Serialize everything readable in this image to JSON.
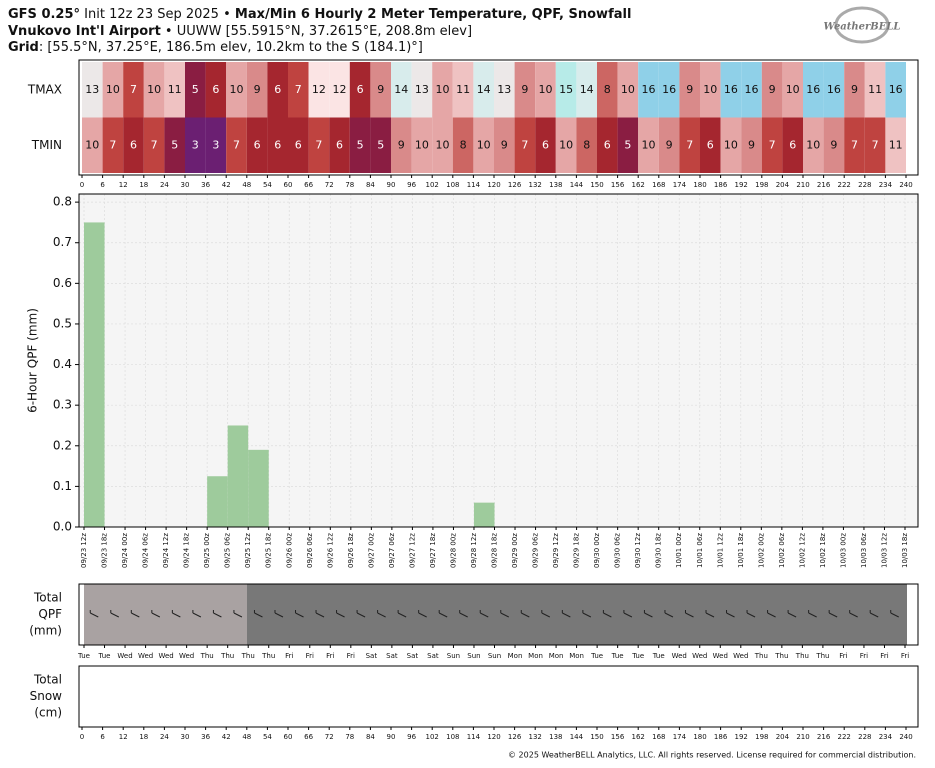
{
  "header": {
    "model": "GFS 0.25°",
    "init": " Init 12z 23 Sep 2025 • ",
    "title": "Max/Min 6 Hourly 2 Meter Temperature, QPF, Snowfall",
    "station": "Vnukovo Int'l Airport",
    "station_info": " • UUWW [55.5915°N, 37.2615°E, 208.8m elev]",
    "grid_label": "Grid",
    "grid_info": ": [55.5°N, 37.25°E, 186.5m elev, 10.2km to the S (184.1)°]",
    "logo": "WeatherBELL",
    "copyright": "© 2025 WeatherBELL Analytics, LLC. All rights reserved. License required for commercial distribution."
  },
  "chart_data": [
    {
      "type": "heatmap",
      "rows": [
        "TMAX",
        "TMIN"
      ],
      "values": [
        [
          13,
          10,
          7,
          10,
          11,
          5,
          6,
          10,
          9,
          6,
          7,
          12,
          12,
          6,
          9,
          14,
          13,
          10,
          11,
          14,
          13,
          9,
          10,
          15,
          14,
          8,
          10,
          16,
          16,
          9,
          10,
          16,
          16,
          9,
          10,
          16,
          16,
          9,
          11,
          16
        ],
        [
          10,
          7,
          6,
          7,
          5,
          3,
          3,
          7,
          6,
          6,
          6,
          7,
          6,
          5,
          5,
          9,
          10,
          10,
          8,
          10,
          9,
          7,
          6,
          10,
          8,
          6,
          5,
          10,
          9,
          7,
          6,
          10,
          9,
          7,
          6,
          10,
          9,
          7,
          7,
          11
        ]
      ],
      "colors": {
        "3": "#6b1f72",
        "5": "#8a1d42",
        "6": "#a5262f",
        "7": "#bf4340",
        "8": "#cc6663",
        "9": "#d98a8a",
        "10": "#e5a6a6",
        "11": "#efc2c2",
        "12": "#fbe4e4",
        "13": "#ece8e8",
        "14": "#d8ecec",
        "15": "#b7ebe8",
        "16": "#8fd0e8"
      },
      "xlim": [
        0,
        240
      ],
      "xticks": [
        0,
        6,
        12,
        18,
        24,
        30,
        36,
        42,
        48,
        54,
        60,
        66,
        72,
        78,
        84,
        90,
        96,
        102,
        108,
        114,
        120,
        126,
        132,
        138,
        144,
        150,
        156,
        162,
        168,
        174,
        180,
        186,
        192,
        198,
        204,
        210,
        216,
        222,
        228,
        234,
        240
      ]
    },
    {
      "type": "bar",
      "ylabel": "6-Hour QPF (mm)",
      "categories": [
        "09/23 12z",
        "09/23 18z",
        "09/24 00z",
        "09/24 06z",
        "09/24 12z",
        "09/24 18z",
        "09/25 00z",
        "09/25 06z",
        "09/25 12z",
        "09/25 18z",
        "09/26 00z",
        "09/26 06z",
        "09/26 12z",
        "09/26 18z",
        "09/27 00z",
        "09/27 06z",
        "09/27 12z",
        "09/27 18z",
        "09/28 00z",
        "09/28 12z",
        "09/28 18z",
        "09/29 00z",
        "09/29 06z",
        "09/29 12z",
        "09/29 18z",
        "09/30 00z",
        "09/30 06z",
        "09/30 12z",
        "09/30 18z",
        "10/01 00z",
        "10/01 06z",
        "10/01 12z",
        "10/01 18z",
        "10/02 00z",
        "10/02 06z",
        "10/02 12z",
        "10/02 18z",
        "10/03 00z",
        "10/03 06z",
        "10/03 12z",
        "10/03 18z"
      ],
      "values": [
        0.75,
        0,
        0,
        0,
        0,
        0,
        0.125,
        0.25,
        0.19,
        0,
        0,
        0,
        0,
        0,
        0,
        0,
        0,
        0,
        0,
        0.06,
        0,
        0,
        0,
        0,
        0,
        0,
        0,
        0,
        0,
        0,
        0,
        0,
        0,
        0,
        0,
        0,
        0,
        0,
        0,
        0,
        0
      ],
      "color": "#9ecb9c",
      "ylim": [
        0,
        0.82
      ],
      "yticks": [
        {
          "value": 0,
          "label": "0.0"
        },
        0.1,
        0.2,
        0.3,
        0.4,
        0.5,
        0.6,
        0.7,
        0.8
      ],
      "grid": true
    },
    {
      "type": "strip",
      "ylabel": [
        "Total",
        "QPF",
        "(mm)"
      ],
      "categories": [
        "Tue",
        "Tue",
        "Wed",
        "Wed",
        "Wed",
        "Wed",
        "Thu",
        "Thu",
        "Thu",
        "Thu",
        "Fri",
        "Fri",
        "Fri",
        "Fri",
        "Sat",
        "Sat",
        "Sat",
        "Sat",
        "Sun",
        "Sun",
        "Sun",
        "Mon",
        "Mon",
        "Mon",
        "Mon",
        "Tue",
        "Tue",
        "Tue",
        "Tue",
        "Wed",
        "Wed",
        "Wed",
        "Wed",
        "Thu",
        "Thu",
        "Thu",
        "Thu",
        "Fri",
        "Fri",
        "Fri",
        "Fri"
      ]
    },
    {
      "type": "strip",
      "ylabel": [
        "Total",
        "Snow",
        "(cm)"
      ],
      "xlim": [
        0,
        240
      ],
      "xticks": [
        0,
        6,
        12,
        18,
        24,
        30,
        36,
        42,
        48,
        54,
        60,
        66,
        72,
        78,
        84,
        90,
        96,
        102,
        108,
        114,
        120,
        126,
        132,
        138,
        144,
        150,
        156,
        162,
        168,
        174,
        180,
        186,
        192,
        198,
        204,
        210,
        216,
        222,
        228,
        234,
        240
      ]
    }
  ]
}
